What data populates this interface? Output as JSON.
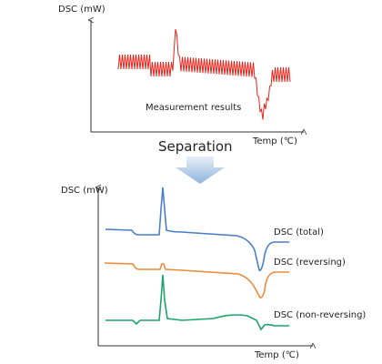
{
  "top_panel": {
    "y_axis_label": "DSC (mW)",
    "annotation": "Measurement results",
    "x_axis_label": "Temp (℃)"
  },
  "arrow_label": "Separation",
  "bottom_panel": {
    "y_axis_label": "DSC (mW)",
    "x_axis_label": "Temp (℃)",
    "curves": [
      {
        "label": "DSC (total)"
      },
      {
        "label": "DSC (reversing)"
      },
      {
        "label": "DSC (non-reversing)"
      }
    ]
  }
}
